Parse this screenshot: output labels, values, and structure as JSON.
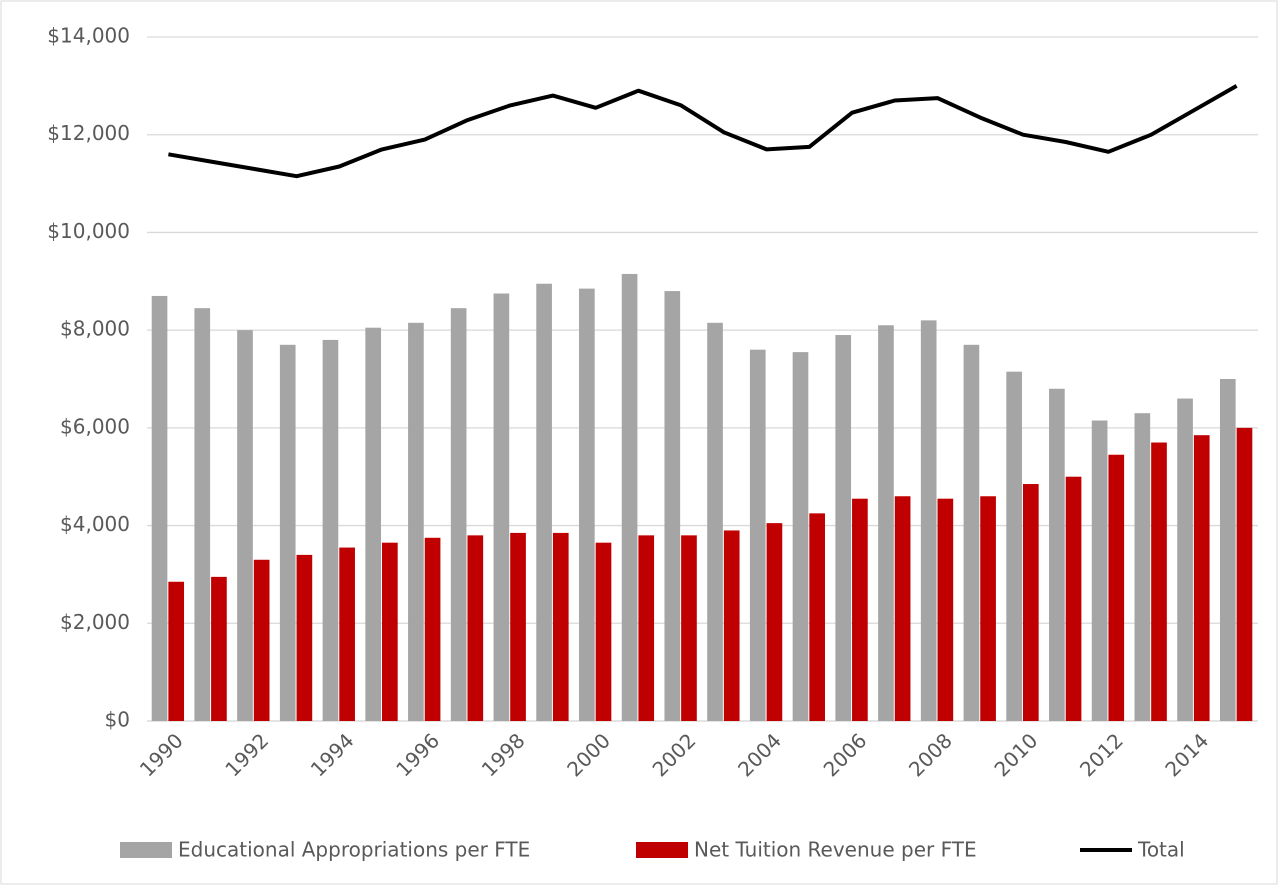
{
  "chart_data": {
    "type": "bar",
    "categories": [
      "1990",
      null,
      "1992",
      null,
      "1994",
      null,
      "1996",
      null,
      "1998",
      null,
      "2000",
      null,
      "2002",
      null,
      "2004",
      null,
      "2006",
      null,
      "2008",
      null,
      "2010",
      null,
      "2012",
      null,
      "2014",
      null
    ],
    "series": [
      {
        "name": "Educational Appropriations per FTE",
        "type": "bar",
        "color": "#a5a5a5",
        "values": [
          8700,
          8450,
          8000,
          7700,
          7800,
          8050,
          8150,
          8450,
          8750,
          8950,
          8850,
          9150,
          8800,
          8150,
          7600,
          7550,
          7900,
          8100,
          8200,
          7700,
          7150,
          6800,
          6150,
          6300,
          6600,
          7000
        ]
      },
      {
        "name": "Net Tuition Revenue per FTE",
        "type": "bar",
        "color": "#c00000",
        "values": [
          2850,
          2950,
          3300,
          3400,
          3550,
          3650,
          3750,
          3800,
          3850,
          3850,
          3650,
          3800,
          3800,
          3900,
          4050,
          4250,
          4550,
          4600,
          4550,
          4600,
          4850,
          5000,
          5450,
          5700,
          5850,
          6000
        ]
      },
      {
        "name": "Total",
        "type": "line",
        "color": "#000000",
        "values": [
          11600,
          11450,
          11300,
          11150,
          11350,
          11700,
          11900,
          12300,
          12600,
          12800,
          12550,
          12900,
          12600,
          12050,
          11700,
          11750,
          12450,
          12700,
          12750,
          12350,
          12000,
          11850,
          11650,
          12000,
          12500,
          13000
        ]
      }
    ],
    "ylim": [
      0,
      14000
    ],
    "yticks": [
      {
        "value": 0,
        "label": "$0"
      },
      {
        "value": 2000,
        "label": "$2,000"
      },
      {
        "value": 4000,
        "label": "$4,000"
      },
      {
        "value": 6000,
        "label": "$6,000"
      },
      {
        "value": 8000,
        "label": "$8,000"
      },
      {
        "value": 10000,
        "label": "$10,000"
      },
      {
        "value": 12000,
        "label": "$12,000"
      },
      {
        "value": 14000,
        "label": "$14,000"
      }
    ],
    "grid": true,
    "legend": "bottom"
  }
}
